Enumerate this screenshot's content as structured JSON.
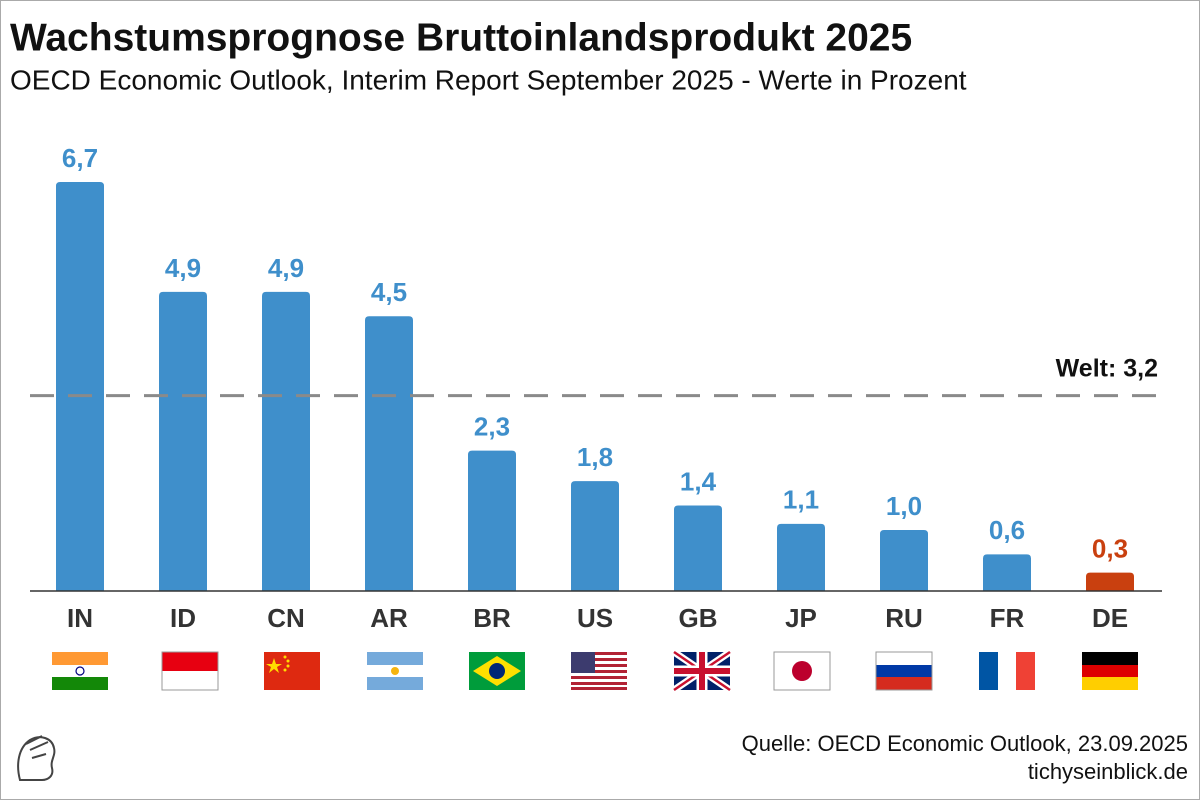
{
  "chart_data": {
    "type": "bar",
    "title": "Wachstumsprognose Bruttoinlandsprodukt 2025",
    "subtitle": "OECD Economic Outlook, Interim Report September 2025 - Werte in Prozent",
    "categories": [
      "IN",
      "ID",
      "CN",
      "AR",
      "BR",
      "US",
      "GB",
      "JP",
      "RU",
      "FR",
      "DE"
    ],
    "values": [
      6.7,
      4.9,
      4.9,
      4.5,
      2.3,
      1.8,
      1.4,
      1.1,
      1.0,
      0.6,
      0.3
    ],
    "value_labels": [
      "6,7",
      "4,9",
      "4,9",
      "4,5",
      "2,3",
      "1,8",
      "1,4",
      "1,1",
      "1,0",
      "0,6",
      "0,3"
    ],
    "colors": [
      "#3f8fcb",
      "#3f8fcb",
      "#3f8fcb",
      "#3f8fcb",
      "#3f8fcb",
      "#3f8fcb",
      "#3f8fcb",
      "#3f8fcb",
      "#3f8fcb",
      "#3f8fcb",
      "#c9400f"
    ],
    "reference_line": {
      "value": 3.2,
      "label": "Welt: 3,2"
    },
    "source": "Quelle: OECD Economic Outlook, 23.09.2025",
    "website": "tichyseinblick.de"
  }
}
